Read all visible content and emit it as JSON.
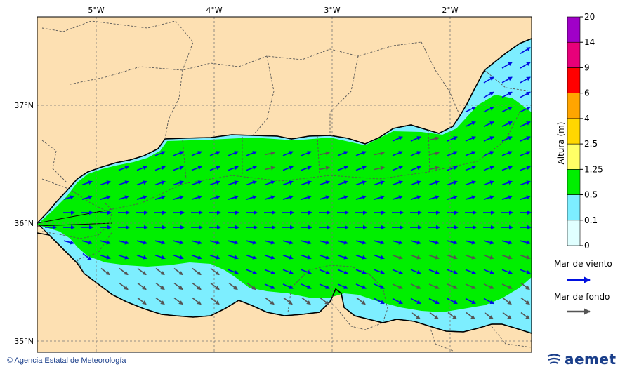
{
  "map": {
    "lon_ticks": [
      "5°W",
      "4°W",
      "3°W",
      "2°W"
    ],
    "lat_ticks": [
      "37°N",
      "36°N",
      "35°N"
    ]
  },
  "legend": {
    "colorbar_title": "Altura (m)",
    "classes": [
      {
        "value": "0",
        "color": "#e0ffff"
      },
      {
        "value": "0.1",
        "color": "#7deeff"
      },
      {
        "value": "0.5",
        "color": "#00ef00"
      },
      {
        "value": "1.25",
        "color": "#ffff66"
      },
      {
        "value": "2.5",
        "color": "#ffd700"
      },
      {
        "value": "4",
        "color": "#ffa500"
      },
      {
        "value": "6",
        "color": "#ff0000"
      },
      {
        "value": "9",
        "color": "#e8007a"
      },
      {
        "value": "14",
        "color": "#a000c8"
      },
      {
        "value": "20",
        "color": ""
      }
    ],
    "wind_sea_label": "Mar de viento",
    "swell_label": "Mar de fondo",
    "wind_sea_color": "#0010e0",
    "swell_color": "#555555"
  },
  "footer": {
    "credit": "© Agencia Estatal de Meteorología",
    "brand": "aemet"
  },
  "colors": {
    "land": "#fde0b2",
    "coast": "#000000",
    "border": "#555555"
  }
}
